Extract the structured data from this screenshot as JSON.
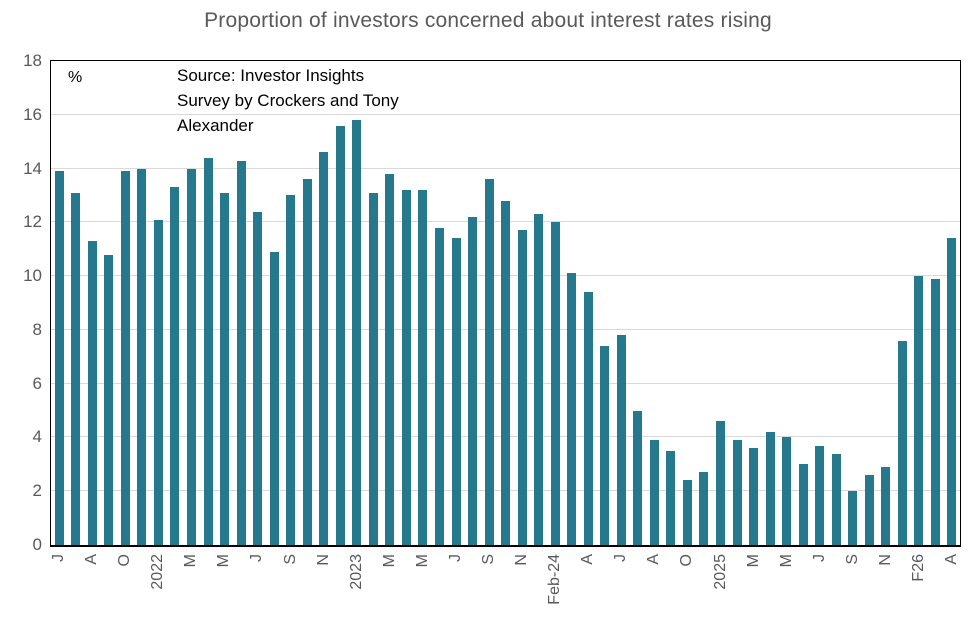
{
  "title": "Proportion of investors concerned about interest rates rising",
  "pct_axis_label": "%",
  "source_note": "Source: Investor Insights\nSurvey by Crockers and Tony\nAlexander",
  "colors": {
    "bar": "#26798c",
    "title_text": "#595959",
    "axis_text": "#595959",
    "gridline": "#d9d9d9",
    "plot_border": "#000000"
  },
  "chart_data": {
    "type": "bar",
    "title": "Proportion of investors concerned about interest rates rising",
    "ylabel": "%",
    "ylim": [
      0,
      18
    ],
    "ytick_step": 2,
    "grid": "horizontal-light-gray",
    "legend": "none",
    "source": "Source: Investor Insights Survey by Crockers and Tony Alexander",
    "categories": [
      "J",
      "",
      "A",
      "",
      "O",
      "",
      "2022",
      "",
      "M",
      "",
      "M",
      "",
      "J",
      "",
      "S",
      "",
      "N",
      "",
      "2023",
      "",
      "M",
      "",
      "M",
      "",
      "J",
      "",
      "S",
      "",
      "N",
      "",
      "Feb-24",
      "",
      "A",
      "",
      "J",
      "",
      "A",
      "",
      "O",
      "",
      "2025",
      "",
      "M",
      "",
      "M",
      "",
      "J",
      "",
      "S",
      "",
      "N",
      "",
      "F26",
      "",
      "A"
    ],
    "values": [
      13.9,
      13.1,
      11.3,
      10.8,
      13.9,
      14.0,
      12.1,
      13.3,
      14.0,
      14.4,
      13.1,
      14.3,
      12.4,
      10.9,
      13.0,
      13.6,
      14.6,
      15.6,
      15.8,
      13.1,
      13.8,
      13.2,
      13.2,
      11.8,
      11.4,
      12.2,
      13.6,
      12.8,
      11.7,
      12.3,
      12.0,
      10.1,
      9.4,
      7.4,
      7.8,
      5.0,
      3.9,
      3.5,
      2.4,
      2.7,
      4.6,
      3.9,
      3.6,
      4.2,
      4.0,
      3.0,
      3.7,
      3.4,
      2.0,
      2.6,
      2.9,
      7.6,
      10.0,
      9.9,
      11.4
    ]
  }
}
